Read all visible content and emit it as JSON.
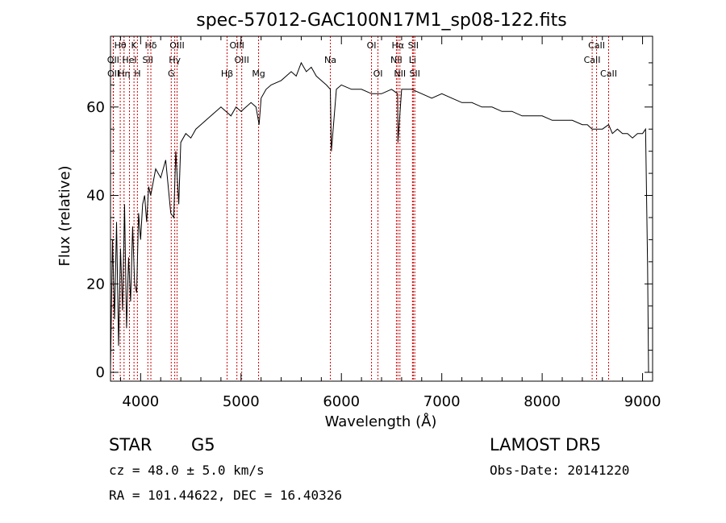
{
  "chart_data": {
    "type": "line",
    "title": "spec-57012-GAC100N17M1_sp08-122.fits",
    "xlabel": "Wavelength (Å)",
    "ylabel": "Flux (relative)",
    "xlim": [
      3700,
      9100
    ],
    "ylim": [
      -2,
      76
    ],
    "xticks": [
      4000,
      5000,
      6000,
      7000,
      8000,
      9000
    ],
    "yticks": [
      0,
      20,
      40,
      60
    ],
    "grid": false,
    "line_color": "#000000",
    "marker_color": "#cc0000",
    "series": [
      {
        "x": [
          3700,
          3720,
          3740,
          3760,
          3780,
          3800,
          3820,
          3840,
          3860,
          3880,
          3900,
          3920,
          3940,
          3960,
          3980,
          4000,
          4020,
          4040,
          4060,
          4080,
          4100,
          4150,
          4200,
          4250,
          4300,
          4330,
          4350,
          4380,
          4400,
          4450,
          4500,
          4550,
          4600,
          4650,
          4700,
          4750,
          4800,
          4850,
          4900,
          4950,
          5000,
          5050,
          5100,
          5150,
          5180,
          5200,
          5250,
          5300,
          5400,
          5500,
          5550,
          5600,
          5650,
          5700,
          5750,
          5800,
          5850,
          5890,
          5900,
          5950,
          6000,
          6100,
          6200,
          6300,
          6400,
          6500,
          6560,
          6563,
          6600,
          6700,
          6800,
          6900,
          7000,
          7100,
          7200,
          7300,
          7400,
          7500,
          7600,
          7700,
          7800,
          7900,
          8000,
          8100,
          8200,
          8300,
          8400,
          8450,
          8498,
          8542,
          8600,
          8662,
          8700,
          8750,
          8800,
          8850,
          8900,
          8950,
          9000,
          9030,
          9050,
          9060
        ],
        "y": [
          1,
          30,
          12,
          34,
          6,
          28,
          14,
          38,
          10,
          26,
          16,
          33,
          20,
          18,
          36,
          30,
          38,
          40,
          34,
          42,
          40,
          46,
          44,
          48,
          36,
          35,
          50,
          38,
          52,
          54,
          53,
          55,
          56,
          57,
          58,
          59,
          60,
          59,
          58,
          60,
          59,
          60,
          61,
          60,
          56,
          62,
          64,
          65,
          66,
          68,
          67,
          70,
          68,
          69,
          67,
          66,
          65,
          64,
          50,
          64,
          65,
          64,
          64,
          63,
          63,
          64,
          63,
          52,
          64,
          64,
          63,
          62,
          63,
          62,
          61,
          61,
          60,
          60,
          59,
          59,
          58,
          58,
          58,
          57,
          57,
          57,
          56,
          56,
          55,
          55,
          55,
          56,
          54,
          55,
          54,
          54,
          53,
          54,
          54,
          55,
          24,
          0
        ]
      }
    ],
    "line_markers": [
      {
        "label": "Hθ",
        "x": 3797,
        "row": 1
      },
      {
        "label": "K",
        "x": 3934,
        "row": 1
      },
      {
        "label": "Hδ",
        "x": 4102,
        "row": 1
      },
      {
        "label": "OIII",
        "x": 4363,
        "row": 1
      },
      {
        "label": "OIII",
        "x": 4959,
        "row": 1
      },
      {
        "label": "OI",
        "x": 6300,
        "row": 1
      },
      {
        "label": "Hα",
        "x": 6563,
        "row": 1
      },
      {
        "label": "SII",
        "x": 6716,
        "row": 1
      },
      {
        "label": "CaII",
        "x": 8542,
        "row": 1
      },
      {
        "label": "OII",
        "x": 3727,
        "row": 2
      },
      {
        "label": "HeI",
        "x": 3889,
        "row": 2
      },
      {
        "label": "SII",
        "x": 4072,
        "row": 2
      },
      {
        "label": "Hγ",
        "x": 4340,
        "row": 2
      },
      {
        "label": "OIII",
        "x": 5007,
        "row": 2
      },
      {
        "label": "Na",
        "x": 5890,
        "row": 2
      },
      {
        "label": "NII",
        "x": 6548,
        "row": 2
      },
      {
        "label": "Li",
        "x": 6708,
        "row": 2
      },
      {
        "label": "CaII",
        "x": 8498,
        "row": 2
      },
      {
        "label": "OII",
        "x": 3729,
        "row": 3
      },
      {
        "label": "Hη",
        "x": 3835,
        "row": 3
      },
      {
        "label": "H",
        "x": 3968,
        "row": 3
      },
      {
        "label": "G",
        "x": 4305,
        "row": 3
      },
      {
        "label": "Hβ",
        "x": 4861,
        "row": 3
      },
      {
        "label": "Mg",
        "x": 5175,
        "row": 3
      },
      {
        "label": "OI",
        "x": 6364,
        "row": 3
      },
      {
        "label": "NII",
        "x": 6583,
        "row": 3
      },
      {
        "label": "SII",
        "x": 6731,
        "row": 3
      },
      {
        "label": "CaII",
        "x": 8662,
        "row": 3
      }
    ]
  },
  "info": {
    "object_class": "STAR",
    "subclass": "G5",
    "survey": "LAMOST DR5",
    "cz": "cz = 48.0 ± 5.0 km/s",
    "obs_date": "Obs-Date: 20141220",
    "coords": "RA = 101.44622, DEC =  16.40326"
  }
}
